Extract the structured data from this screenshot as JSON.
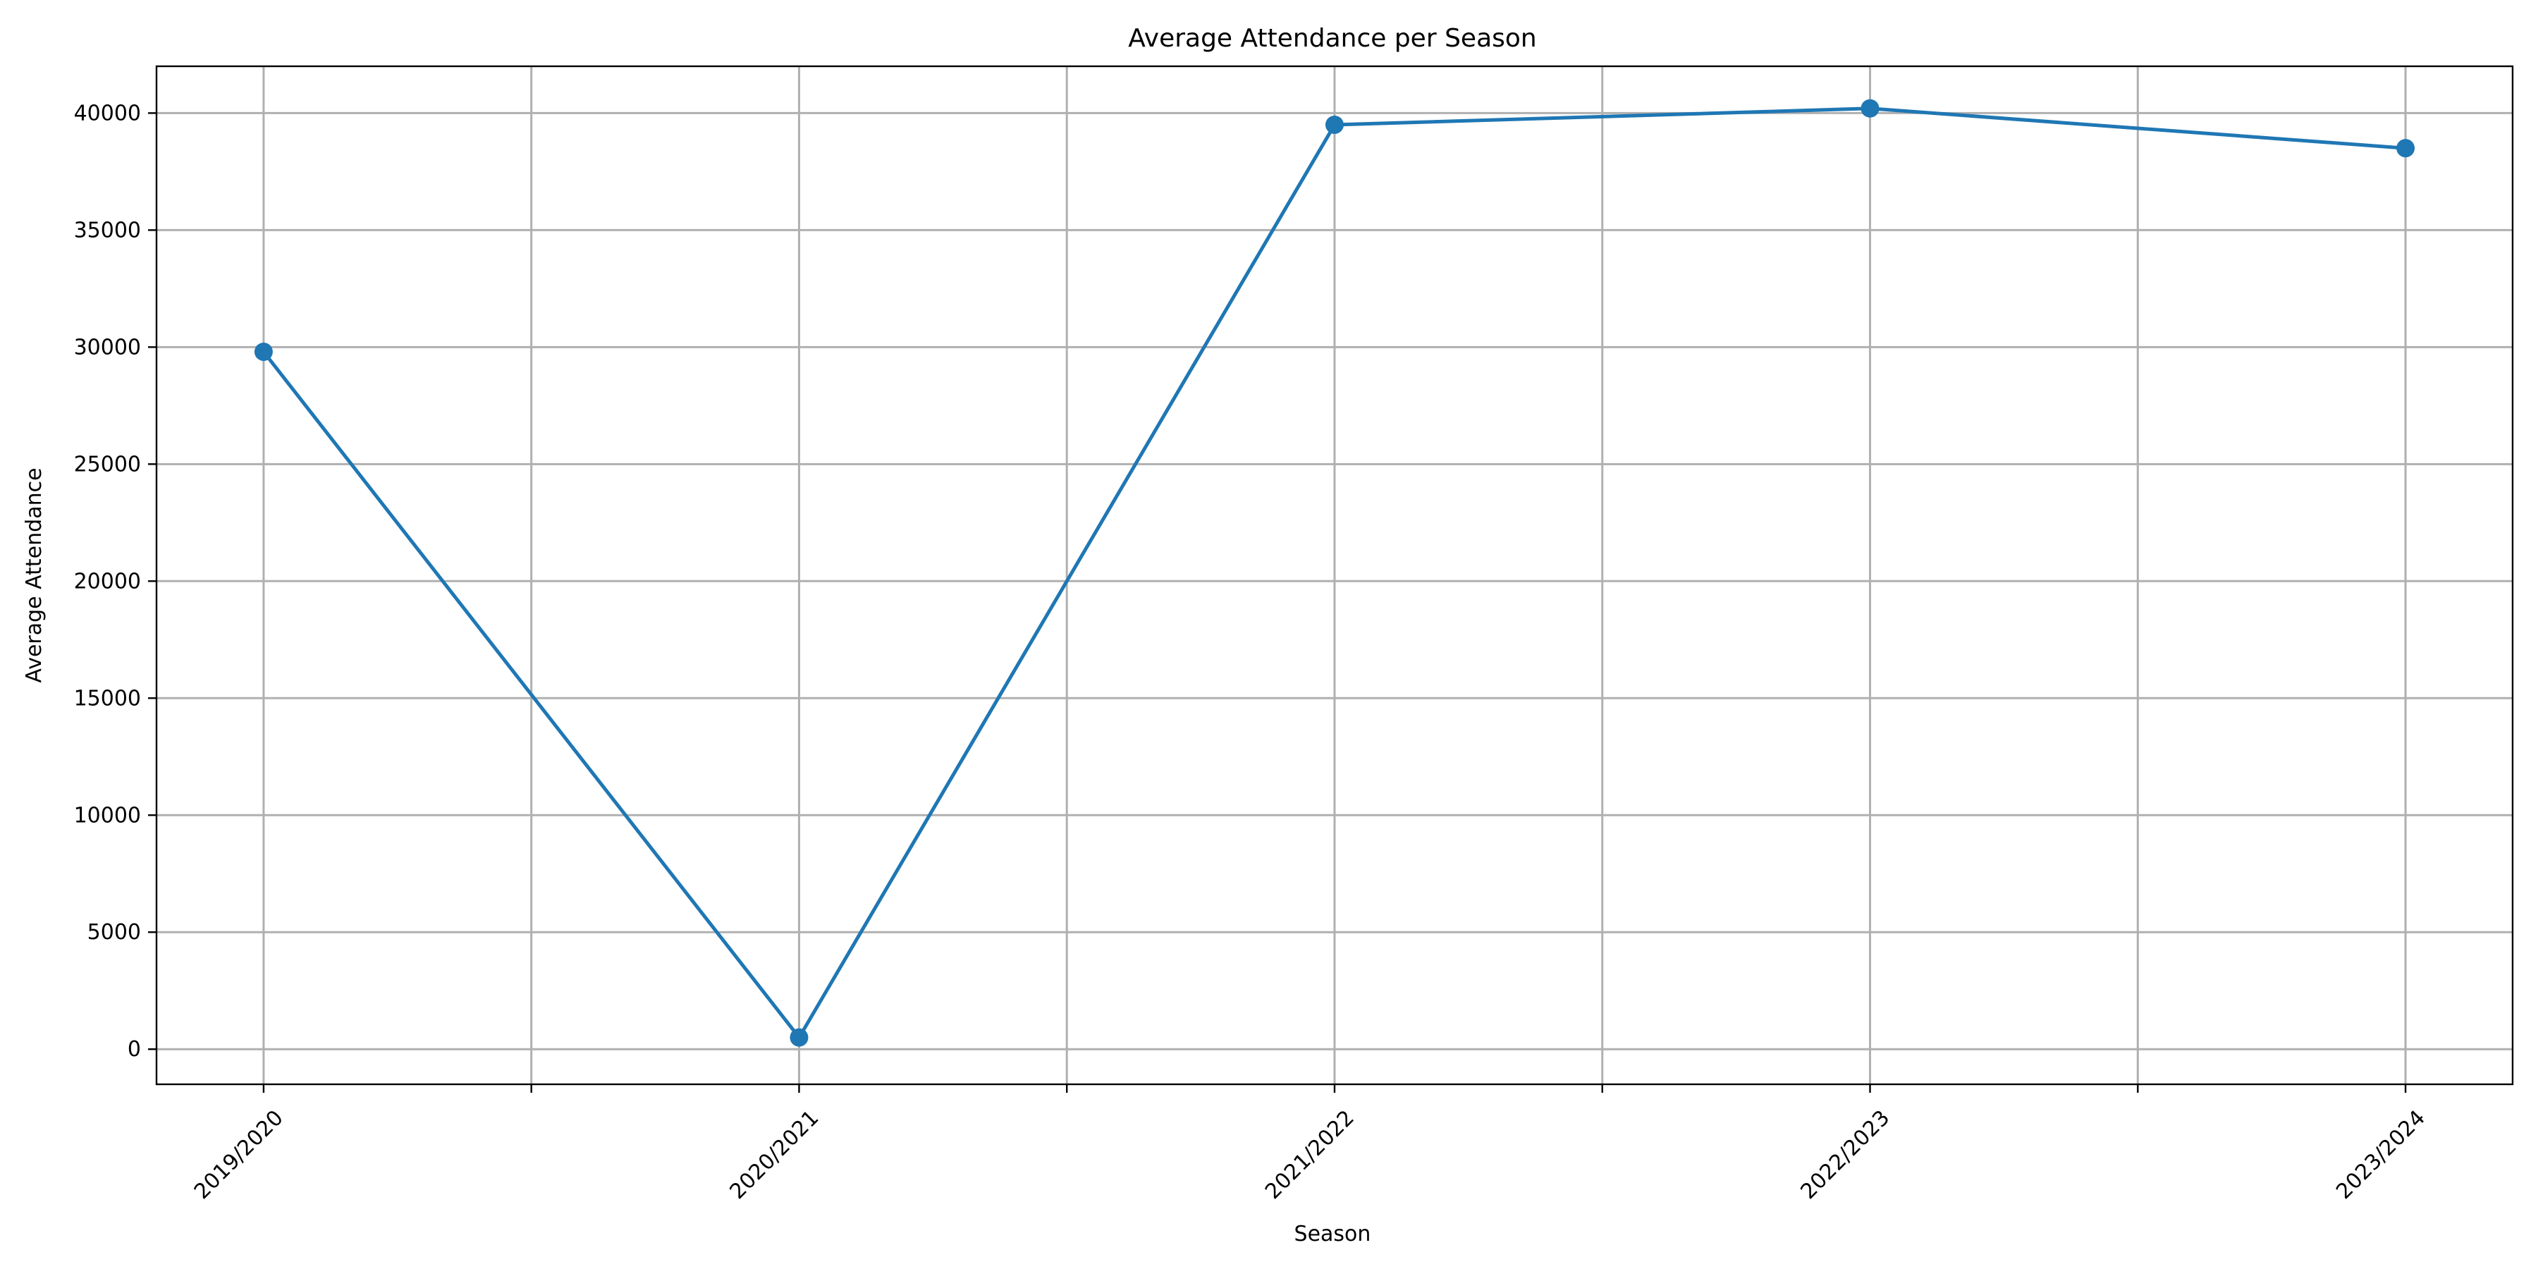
{
  "chart_data": {
    "type": "line",
    "title": "Average Attendance per Season",
    "xlabel": "Season",
    "ylabel": "Average Attendance",
    "categories": [
      "2019/2020",
      "2020/2021",
      "2021/2022",
      "2022/2023",
      "2023/2024"
    ],
    "series": [
      {
        "values": [
          29800,
          500,
          39500,
          40200,
          38500
        ],
        "color": "#1f77b4",
        "marker": "circle"
      }
    ],
    "xlim": [
      -0.2,
      4.2
    ],
    "ylim": [
      -1500,
      42000
    ],
    "y_ticks": [
      0,
      5000,
      10000,
      15000,
      20000,
      25000,
      30000,
      35000,
      40000
    ],
    "x_ticks": [
      0,
      0.5,
      1,
      1.5,
      2,
      2.5,
      3,
      3.5,
      4
    ],
    "x_tick_labels": [
      "2019/2020",
      "",
      "2020/2021",
      "",
      "2021/2022",
      "",
      "2022/2023",
      "",
      "2023/2024"
    ],
    "x_tick_rotation": 45,
    "grid": true
  }
}
